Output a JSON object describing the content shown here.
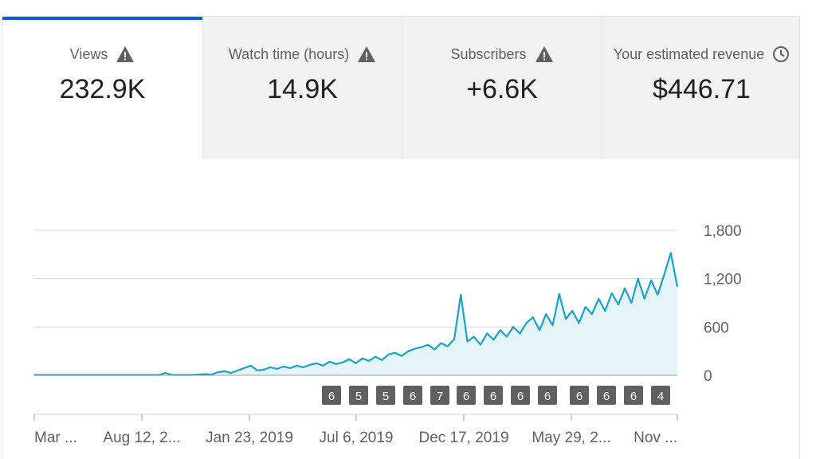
{
  "tabs": [
    {
      "label": "Views",
      "value": "232.9K",
      "icon": "warning-icon",
      "active": true
    },
    {
      "label": "Watch time (hours)",
      "value": "14.9K",
      "icon": "warning-icon",
      "active": false
    },
    {
      "label": "Subscribers",
      "value": "+6.6K",
      "icon": "warning-icon",
      "active": false
    },
    {
      "label": "Your estimated revenue",
      "value": "$446.71",
      "icon": "clock-icon",
      "active": false
    }
  ],
  "colors": {
    "accent": "#065fd4",
    "line": "#1aa3c9",
    "fill": "#e5f4f9",
    "marker": "#606060"
  },
  "chart_data": {
    "type": "area",
    "y_ticks": [
      "1,800",
      "1,200",
      "600",
      "0"
    ],
    "ylim": [
      0,
      1800
    ],
    "x_ticks": [
      "Mar ...",
      "Aug 12, 2...",
      "Jan 23, 2019",
      "Jul 6, 2019",
      "Dec 17, 2019",
      "May 29, 2...",
      "Nov ..."
    ],
    "markers": [
      "6",
      "5",
      "5",
      "6",
      "7",
      "6",
      "6",
      "6",
      "6",
      "6",
      "6",
      "6",
      "4"
    ],
    "grid": true,
    "y_axis_side": "right",
    "series": [
      {
        "x_start": "Mar 2018",
        "x_end": "Nov 2020",
        "values": [
          5,
          5,
          5,
          5,
          5,
          5,
          5,
          5,
          5,
          5,
          5,
          5,
          5,
          5,
          5,
          5,
          5,
          5,
          5,
          5,
          30,
          5,
          5,
          5,
          5,
          10,
          15,
          10,
          40,
          50,
          30,
          60,
          90,
          120,
          60,
          70,
          100,
          80,
          110,
          90,
          120,
          100,
          130,
          150,
          120,
          170,
          140,
          160,
          200,
          150,
          210,
          180,
          230,
          190,
          260,
          280,
          240,
          300,
          330,
          350,
          380,
          320,
          400,
          360,
          450,
          1000,
          420,
          480,
          380,
          520,
          440,
          560,
          480,
          600,
          520,
          650,
          720,
          560,
          760,
          620,
          1010,
          700,
          800,
          650,
          850,
          760,
          950,
          800,
          1020,
          880,
          1080,
          900,
          1200,
          950,
          1180,
          1000,
          1250,
          1520,
          1100
        ]
      }
    ]
  }
}
